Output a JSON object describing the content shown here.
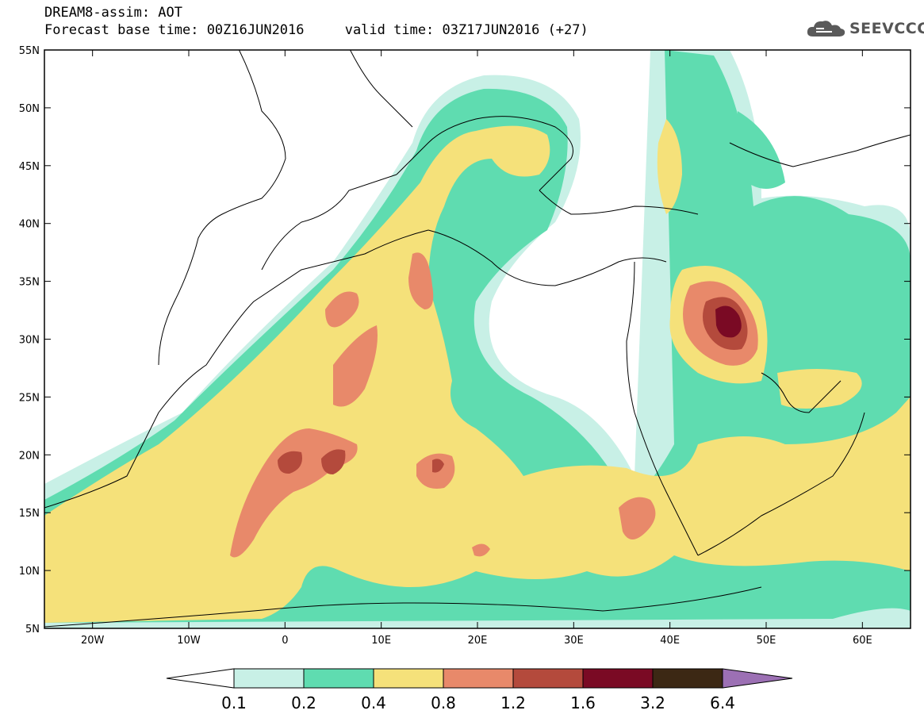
{
  "header": {
    "title": "DREAM8-assim: AOT",
    "base_time_label": "Forecast base time: 00Z16JUN2016",
    "valid_time_label": "valid time: 03Z17JUN2016 (+27)",
    "logo_text": "SEEVCCC"
  },
  "map": {
    "lat_labels": [
      "55N",
      "50N",
      "45N",
      "40N",
      "35N",
      "30N",
      "25N",
      "20N",
      "15N",
      "10N",
      "5N"
    ],
    "lon_labels": [
      "20W",
      "10W",
      "0",
      "10E",
      "20E",
      "30E",
      "40E",
      "50E",
      "60E"
    ],
    "lat_range": [
      5,
      55
    ],
    "lon_range": [
      -25,
      65
    ]
  },
  "colorbar": {
    "labels": [
      "0.1",
      "0.2",
      "0.4",
      "0.8",
      "1.2",
      "1.6",
      "3.2",
      "6.4"
    ],
    "colors": [
      "#c8f0e6",
      "#5fdcb0",
      "#f5e17a",
      "#e8896a",
      "#b44a3c",
      "#7a0a24",
      "#3c2814",
      "#9c70b4"
    ],
    "below_color": "#ffffff"
  },
  "legend": {
    "levels": [
      {
        "value": "0.1",
        "color": "#c8f0e6"
      },
      {
        "value": "0.2",
        "color": "#5fdcb0"
      },
      {
        "value": "0.4",
        "color": "#f5e17a"
      },
      {
        "value": "0.8",
        "color": "#e8896a"
      },
      {
        "value": "1.2",
        "color": "#b44a3c"
      },
      {
        "value": "1.6",
        "color": "#7a0a24"
      }
    ]
  }
}
